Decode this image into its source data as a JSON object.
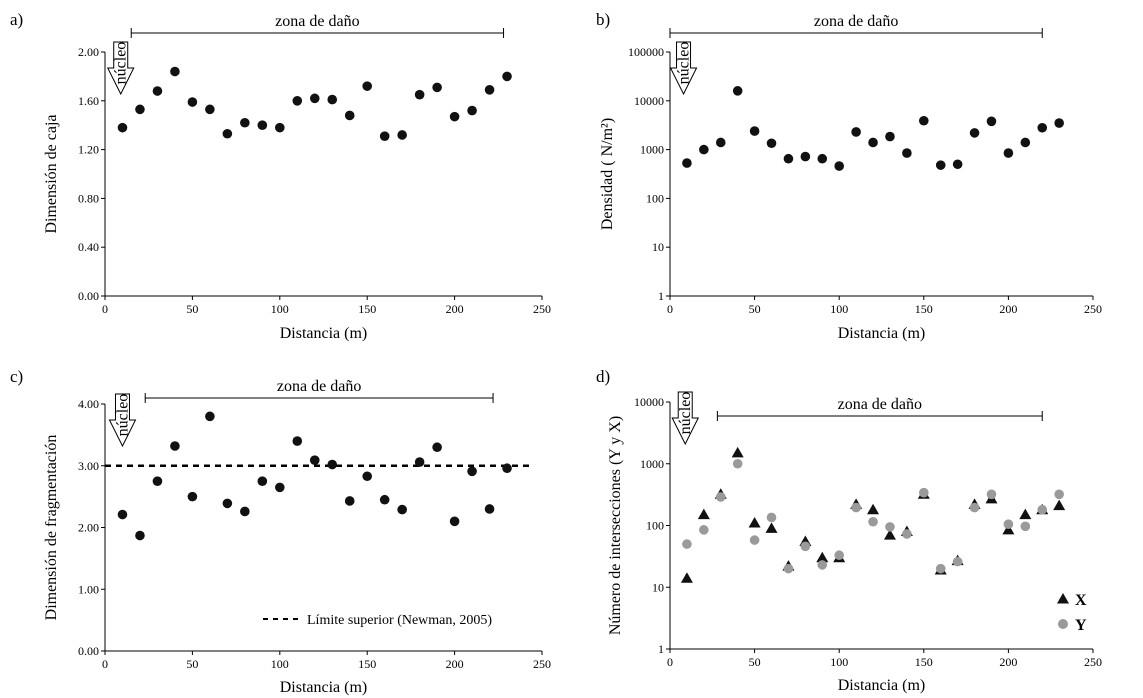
{
  "chart_data": [
    {
      "id": "a",
      "type": "scatter",
      "panel_label": "a)",
      "xlabel": "Distancia (m)",
      "ylabel": "Dimensión de caja",
      "xlim": [
        0,
        250
      ],
      "ylim": [
        0,
        2.0
      ],
      "yscale": "linear",
      "xticks": [
        "0",
        "50",
        "100",
        "150",
        "200",
        "250"
      ],
      "yticks": [
        "0.00",
        "0.40",
        "0.80",
        "1.20",
        "1.60",
        "2.00"
      ],
      "zone": {
        "label": "zona de daño",
        "x_start": 15,
        "x_end": 228
      },
      "nucleo": {
        "label": "núcleo",
        "x": 9
      },
      "series": [
        {
          "marker": "circle",
          "color": "#111111",
          "x": [
            10,
            20,
            30,
            40,
            50,
            60,
            70,
            80,
            90,
            100,
            110,
            120,
            130,
            140,
            150,
            160,
            170,
            180,
            190,
            200,
            210,
            220,
            230
          ],
          "y": [
            1.38,
            1.53,
            1.68,
            1.84,
            1.59,
            1.53,
            1.33,
            1.42,
            1.4,
            1.38,
            1.6,
            1.62,
            1.61,
            1.48,
            1.72,
            1.31,
            1.32,
            1.65,
            1.71,
            1.47,
            1.52,
            1.69,
            1.8
          ]
        }
      ]
    },
    {
      "id": "b",
      "type": "scatter",
      "panel_label": "b)",
      "xlabel": "Distancia (m)",
      "ylabel": "Densidad ( N/m²)",
      "xlim": [
        0,
        250
      ],
      "ylim": [
        1,
        100000
      ],
      "yscale": "log",
      "xticks": [
        "0",
        "50",
        "100",
        "150",
        "200",
        "250"
      ],
      "yticks": [
        "1",
        "10",
        "100",
        "1000",
        "10000",
        "100000"
      ],
      "zone": {
        "label": "zona de daño",
        "x_start": 0,
        "x_end": 220
      },
      "nucleo": {
        "label": "núcleo",
        "x": 8
      },
      "series": [
        {
          "marker": "circle",
          "color": "#111111",
          "x": [
            10,
            20,
            30,
            40,
            50,
            60,
            70,
            80,
            90,
            100,
            110,
            120,
            130,
            140,
            150,
            160,
            170,
            180,
            190,
            200,
            210,
            220,
            230
          ],
          "y": [
            530,
            1000,
            1400,
            16000,
            2400,
            1350,
            650,
            720,
            650,
            460,
            2300,
            1400,
            1850,
            850,
            3900,
            480,
            500,
            2200,
            3800,
            850,
            1400,
            2800,
            3500
          ]
        }
      ]
    },
    {
      "id": "c",
      "type": "scatter",
      "panel_label": "c)",
      "xlabel": "Distancia (m)",
      "ylabel": "Dimensión de fragmentación",
      "xlim": [
        0,
        250
      ],
      "ylim": [
        0,
        4.0
      ],
      "yscale": "linear",
      "xticks": [
        "0",
        "50",
        "100",
        "150",
        "200",
        "250"
      ],
      "yticks": [
        "0.00",
        "1.00",
        "2.00",
        "3.00",
        "4.00"
      ],
      "zone": {
        "label": "zona de daño",
        "x_start": 23,
        "x_end": 222
      },
      "nucleo": {
        "label": "núcleo",
        "x": 10
      },
      "reference_line": {
        "y": 3.0,
        "label": "Límite superior (Newman, 2005)"
      },
      "series": [
        {
          "marker": "circle",
          "color": "#111111",
          "x": [
            10,
            20,
            30,
            40,
            50,
            60,
            70,
            80,
            90,
            100,
            110,
            120,
            130,
            140,
            150,
            160,
            170,
            180,
            190,
            200,
            210,
            220,
            230
          ],
          "y": [
            2.21,
            1.87,
            2.75,
            3.32,
            2.5,
            3.8,
            2.39,
            2.26,
            2.75,
            2.65,
            3.4,
            3.09,
            3.02,
            2.43,
            2.83,
            2.45,
            2.29,
            3.06,
            3.3,
            2.1,
            2.91,
            2.3,
            2.96
          ]
        }
      ]
    },
    {
      "id": "d",
      "type": "scatter",
      "panel_label": "d)",
      "xlabel": "Distancia (m)",
      "ylabel": "Número de intersecciones (Y y X)",
      "xlim": [
        0,
        250
      ],
      "ylim": [
        1,
        10000
      ],
      "yscale": "log",
      "xticks": [
        "0",
        "50",
        "100",
        "150",
        "200",
        "250"
      ],
      "yticks": [
        "1",
        "10",
        "100",
        "1000",
        "10000"
      ],
      "zone": {
        "label": "zona de daño",
        "x_start": 28,
        "x_end": 220
      },
      "nucleo": {
        "label": "núcleo",
        "x": 9
      },
      "legend_position": "bottom-right",
      "series": [
        {
          "name": "X",
          "marker": "triangle",
          "color": "#111111",
          "x": [
            10,
            20,
            30,
            40,
            50,
            60,
            70,
            80,
            90,
            100,
            110,
            120,
            130,
            140,
            150,
            160,
            170,
            180,
            190,
            200,
            210,
            220,
            230
          ],
          "y": [
            14,
            150,
            320,
            1500,
            110,
            90,
            22,
            55,
            30,
            30,
            220,
            180,
            70,
            80,
            320,
            19,
            27,
            220,
            270,
            85,
            150,
            180,
            210
          ]
        },
        {
          "name": "Y",
          "marker": "circle",
          "color": "#9a9a9a",
          "x": [
            10,
            20,
            30,
            40,
            50,
            60,
            70,
            80,
            90,
            100,
            110,
            120,
            130,
            140,
            150,
            160,
            170,
            180,
            190,
            200,
            210,
            220,
            230
          ],
          "y": [
            50,
            85,
            290,
            1000,
            58,
            135,
            20,
            46,
            23,
            33,
            195,
            115,
            95,
            73,
            340,
            20,
            26,
            195,
            320,
            105,
            97,
            180,
            320
          ]
        }
      ]
    }
  ]
}
